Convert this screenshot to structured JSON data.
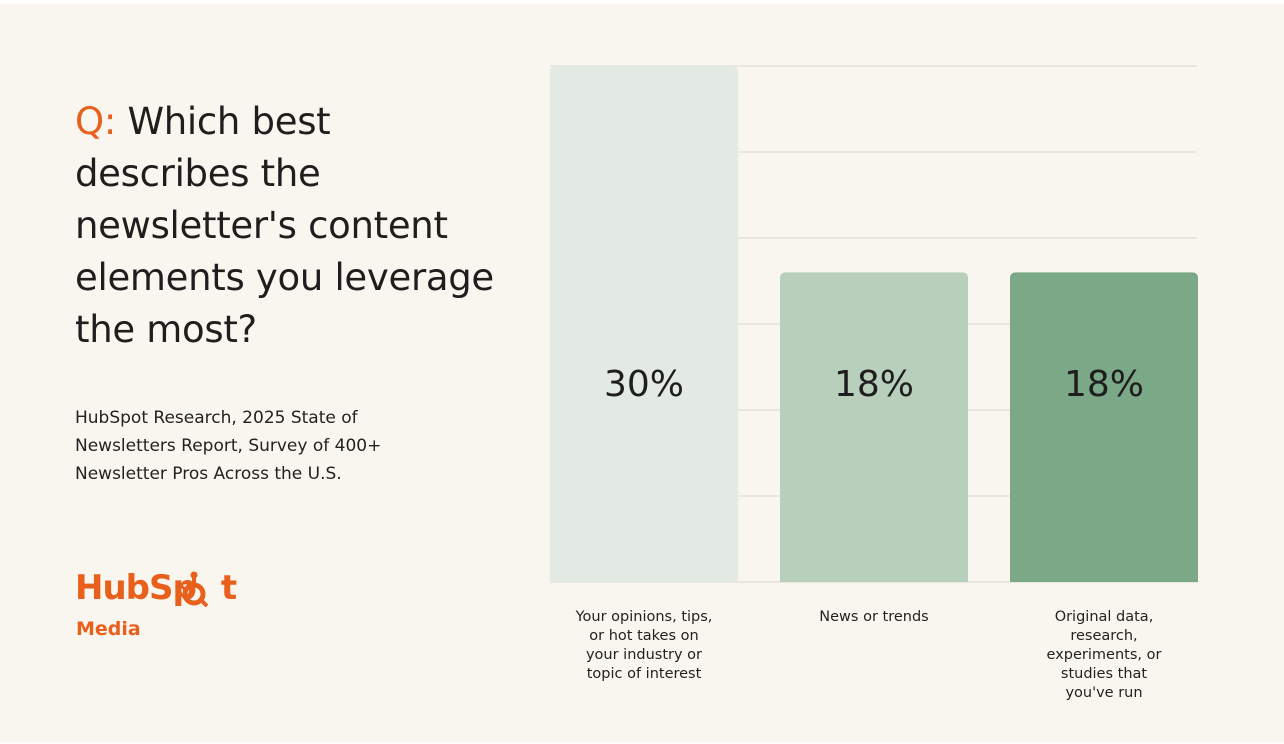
{
  "question": {
    "prefix": "Q:",
    "text": "Which best describes the newsletter's content elements you leverage the most?"
  },
  "source": "HubSpot Research, 2025 State of Newsletters Report, Survey of 400+ Newsletter Pros Across the U.S.",
  "logo": {
    "word_left": "HubSp",
    "word_right": "t",
    "sub": "Media"
  },
  "colors": {
    "accent": "#e8601c",
    "bar1": "#e3eae3",
    "bar2": "#b8cfbc",
    "bar3": "#7ba887"
  },
  "chart_data": {
    "type": "bar",
    "title": "",
    "xlabel": "",
    "ylabel": "",
    "ylim": [
      0,
      30
    ],
    "grid": true,
    "categories": [
      "Your opinions, tips, or hot takes on your industry or topic of interest",
      "News or trends",
      "Original data, research, experiments, or studies that you've run"
    ],
    "values": [
      30,
      18,
      18
    ],
    "value_labels": [
      "30%",
      "18%",
      "18%"
    ]
  }
}
